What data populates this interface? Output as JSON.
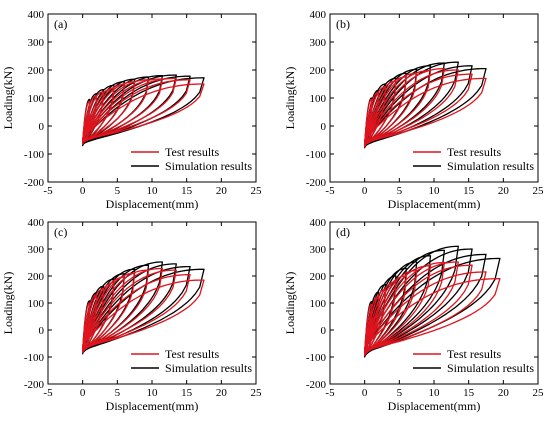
{
  "figure": {
    "legend_labels": [
      "Test results",
      "Simulation results"
    ]
  },
  "chart_data": [
    {
      "type": "line",
      "panel_label": "(a)",
      "xlabel": "Displacement(mm)",
      "ylabel": "Loading(kN)",
      "xlim": [
        -5,
        25
      ],
      "ylim": [
        -200,
        400
      ],
      "xticks": [
        -5,
        0,
        5,
        10,
        15,
        20,
        25
      ],
      "yticks": [
        -200,
        -100,
        0,
        100,
        200,
        300,
        400
      ],
      "legend_position": "bottom-right",
      "series": [
        {
          "name": "Test results",
          "color": "#e0141e",
          "cycles": [
            {
              "dmax": 1.0,
              "fmax": 88,
              "fmin": -65
            },
            {
              "dmax": 2.0,
              "fmax": 108,
              "fmin": -62
            },
            {
              "dmax": 3.0,
              "fmax": 122,
              "fmin": -60
            },
            {
              "dmax": 4.5,
              "fmax": 135,
              "fmin": -60
            },
            {
              "dmax": 6.0,
              "fmax": 148,
              "fmin": -60
            },
            {
              "dmax": 7.5,
              "fmax": 158,
              "fmin": -58
            },
            {
              "dmax": 9.5,
              "fmax": 165,
              "fmin": -58
            },
            {
              "dmax": 11.5,
              "fmax": 168,
              "fmin": -56
            },
            {
              "dmax": 13.5,
              "fmax": 170,
              "fmin": -55
            },
            {
              "dmax": 15.5,
              "fmax": 165,
              "fmin": -52
            },
            {
              "dmax": 17.5,
              "fmax": 150,
              "fmin": -50
            }
          ]
        },
        {
          "name": "Simulation results",
          "color": "#000000",
          "cycles": [
            {
              "dmax": 1.0,
              "fmax": 95,
              "fmin": -70
            },
            {
              "dmax": 2.0,
              "fmax": 115,
              "fmin": -68
            },
            {
              "dmax": 3.0,
              "fmax": 130,
              "fmin": -67
            },
            {
              "dmax": 4.5,
              "fmax": 145,
              "fmin": -66
            },
            {
              "dmax": 6.0,
              "fmax": 158,
              "fmin": -65
            },
            {
              "dmax": 7.5,
              "fmax": 167,
              "fmin": -64
            },
            {
              "dmax": 9.5,
              "fmax": 175,
              "fmin": -63
            },
            {
              "dmax": 11.5,
              "fmax": 180,
              "fmin": -62
            },
            {
              "dmax": 13.5,
              "fmax": 182,
              "fmin": -62
            },
            {
              "dmax": 15.5,
              "fmax": 178,
              "fmin": -60
            },
            {
              "dmax": 17.5,
              "fmax": 172,
              "fmin": -58
            }
          ]
        }
      ]
    },
    {
      "type": "line",
      "panel_label": "(b)",
      "xlabel": "Displacement(mm)",
      "ylabel": "Loading(kN)",
      "xlim": [
        -5,
        25
      ],
      "ylim": [
        -200,
        400
      ],
      "xticks": [
        -5,
        0,
        5,
        10,
        15,
        20,
        25
      ],
      "yticks": [
        -200,
        -100,
        0,
        100,
        200,
        300,
        400
      ],
      "legend_position": "bottom-right",
      "series": [
        {
          "name": "Test results",
          "color": "#e0141e",
          "cycles": [
            {
              "dmax": 1.0,
              "fmax": 95,
              "fmin": -75
            },
            {
              "dmax": 2.0,
              "fmax": 120,
              "fmin": -72
            },
            {
              "dmax": 3.0,
              "fmax": 140,
              "fmin": -70
            },
            {
              "dmax": 4.5,
              "fmax": 160,
              "fmin": -70
            },
            {
              "dmax": 6.0,
              "fmax": 175,
              "fmin": -68
            },
            {
              "dmax": 7.5,
              "fmax": 188,
              "fmin": -68
            },
            {
              "dmax": 9.5,
              "fmax": 198,
              "fmin": -66
            },
            {
              "dmax": 11.5,
              "fmax": 205,
              "fmin": -65
            },
            {
              "dmax": 13.5,
              "fmax": 200,
              "fmin": -63
            },
            {
              "dmax": 15.5,
              "fmax": 185,
              "fmin": -60
            },
            {
              "dmax": 17.5,
              "fmax": 170,
              "fmin": -58
            }
          ]
        },
        {
          "name": "Simulation results",
          "color": "#000000",
          "cycles": [
            {
              "dmax": 1.0,
              "fmax": 100,
              "fmin": -78
            },
            {
              "dmax": 2.0,
              "fmax": 128,
              "fmin": -76
            },
            {
              "dmax": 3.0,
              "fmax": 150,
              "fmin": -75
            },
            {
              "dmax": 4.5,
              "fmax": 170,
              "fmin": -74
            },
            {
              "dmax": 6.0,
              "fmax": 188,
              "fmin": -73
            },
            {
              "dmax": 7.5,
              "fmax": 202,
              "fmin": -72
            },
            {
              "dmax": 9.5,
              "fmax": 215,
              "fmin": -71
            },
            {
              "dmax": 11.5,
              "fmax": 225,
              "fmin": -70
            },
            {
              "dmax": 13.5,
              "fmax": 228,
              "fmin": -69
            },
            {
              "dmax": 15.5,
              "fmax": 215,
              "fmin": -67
            },
            {
              "dmax": 17.5,
              "fmax": 205,
              "fmin": -65
            }
          ]
        }
      ]
    },
    {
      "type": "line",
      "panel_label": "(c)",
      "xlabel": "Displacement(mm)",
      "ylabel": "Loading(kN)",
      "xlim": [
        -5,
        25
      ],
      "ylim": [
        -200,
        400
      ],
      "xticks": [
        -5,
        0,
        5,
        10,
        15,
        20,
        25
      ],
      "yticks": [
        -200,
        -100,
        0,
        100,
        200,
        300,
        400
      ],
      "legend_position": "bottom-right",
      "series": [
        {
          "name": "Test results",
          "color": "#e0141e",
          "cycles": [
            {
              "dmax": 1.0,
              "fmax": 100,
              "fmin": -85
            },
            {
              "dmax": 2.0,
              "fmax": 130,
              "fmin": -82
            },
            {
              "dmax": 3.0,
              "fmax": 152,
              "fmin": -80
            },
            {
              "dmax": 4.5,
              "fmax": 175,
              "fmin": -80
            },
            {
              "dmax": 6.0,
              "fmax": 195,
              "fmin": -78
            },
            {
              "dmax": 7.5,
              "fmax": 210,
              "fmin": -77
            },
            {
              "dmax": 9.5,
              "fmax": 222,
              "fmin": -75
            },
            {
              "dmax": 11.5,
              "fmax": 228,
              "fmin": -73
            },
            {
              "dmax": 13.5,
              "fmax": 222,
              "fmin": -70
            },
            {
              "dmax": 15.5,
              "fmax": 205,
              "fmin": -68
            },
            {
              "dmax": 17.5,
              "fmax": 185,
              "fmin": -65
            }
          ]
        },
        {
          "name": "Simulation results",
          "color": "#000000",
          "cycles": [
            {
              "dmax": 1.0,
              "fmax": 108,
              "fmin": -88
            },
            {
              "dmax": 2.0,
              "fmax": 138,
              "fmin": -86
            },
            {
              "dmax": 3.0,
              "fmax": 162,
              "fmin": -85
            },
            {
              "dmax": 4.5,
              "fmax": 188,
              "fmin": -84
            },
            {
              "dmax": 6.0,
              "fmax": 208,
              "fmin": -83
            },
            {
              "dmax": 7.5,
              "fmax": 225,
              "fmin": -82
            },
            {
              "dmax": 9.5,
              "fmax": 240,
              "fmin": -80
            },
            {
              "dmax": 11.5,
              "fmax": 252,
              "fmin": -79
            },
            {
              "dmax": 13.5,
              "fmax": 245,
              "fmin": -77
            },
            {
              "dmax": 15.5,
              "fmax": 235,
              "fmin": -75
            },
            {
              "dmax": 17.5,
              "fmax": 225,
              "fmin": -73
            }
          ]
        }
      ]
    },
    {
      "type": "line",
      "panel_label": "(d)",
      "xlabel": "Displacement(mm)",
      "ylabel": "Loading(kN)",
      "xlim": [
        -5,
        25
      ],
      "ylim": [
        -200,
        400
      ],
      "xticks": [
        -5,
        0,
        5,
        10,
        15,
        20,
        25
      ],
      "yticks": [
        -200,
        -100,
        0,
        100,
        200,
        300,
        400
      ],
      "legend_position": "bottom-right",
      "series": [
        {
          "name": "Test results",
          "color": "#e0141e",
          "cycles": [
            {
              "dmax": 1.0,
              "fmax": 95,
              "fmin": -95
            },
            {
              "dmax": 2.0,
              "fmax": 125,
              "fmin": -93
            },
            {
              "dmax": 3.0,
              "fmax": 150,
              "fmin": -92
            },
            {
              "dmax": 4.5,
              "fmax": 178,
              "fmin": -92
            },
            {
              "dmax": 6.0,
              "fmax": 200,
              "fmin": -90
            },
            {
              "dmax": 7.5,
              "fmax": 220,
              "fmin": -88
            },
            {
              "dmax": 9.5,
              "fmax": 238,
              "fmin": -86
            },
            {
              "dmax": 11.5,
              "fmax": 250,
              "fmin": -84
            },
            {
              "dmax": 13.5,
              "fmax": 252,
              "fmin": -82
            },
            {
              "dmax": 15.5,
              "fmax": 240,
              "fmin": -80
            },
            {
              "dmax": 17.5,
              "fmax": 215,
              "fmin": -78
            },
            {
              "dmax": 19.5,
              "fmax": 190,
              "fmin": -75
            }
          ]
        },
        {
          "name": "Simulation results",
          "color": "#000000",
          "cycles": [
            {
              "dmax": 1.0,
              "fmax": 105,
              "fmin": -100
            },
            {
              "dmax": 2.0,
              "fmax": 140,
              "fmin": -98
            },
            {
              "dmax": 3.0,
              "fmax": 168,
              "fmin": -97
            },
            {
              "dmax": 4.5,
              "fmax": 200,
              "fmin": -96
            },
            {
              "dmax": 6.0,
              "fmax": 228,
              "fmin": -95
            },
            {
              "dmax": 7.5,
              "fmax": 252,
              "fmin": -94
            },
            {
              "dmax": 9.5,
              "fmax": 275,
              "fmin": -92
            },
            {
              "dmax": 11.5,
              "fmax": 295,
              "fmin": -90
            },
            {
              "dmax": 13.5,
              "fmax": 310,
              "fmin": -88
            },
            {
              "dmax": 15.5,
              "fmax": 300,
              "fmin": -86
            },
            {
              "dmax": 17.5,
              "fmax": 280,
              "fmin": -84
            },
            {
              "dmax": 19.5,
              "fmax": 265,
              "fmin": -82
            }
          ]
        }
      ]
    }
  ]
}
